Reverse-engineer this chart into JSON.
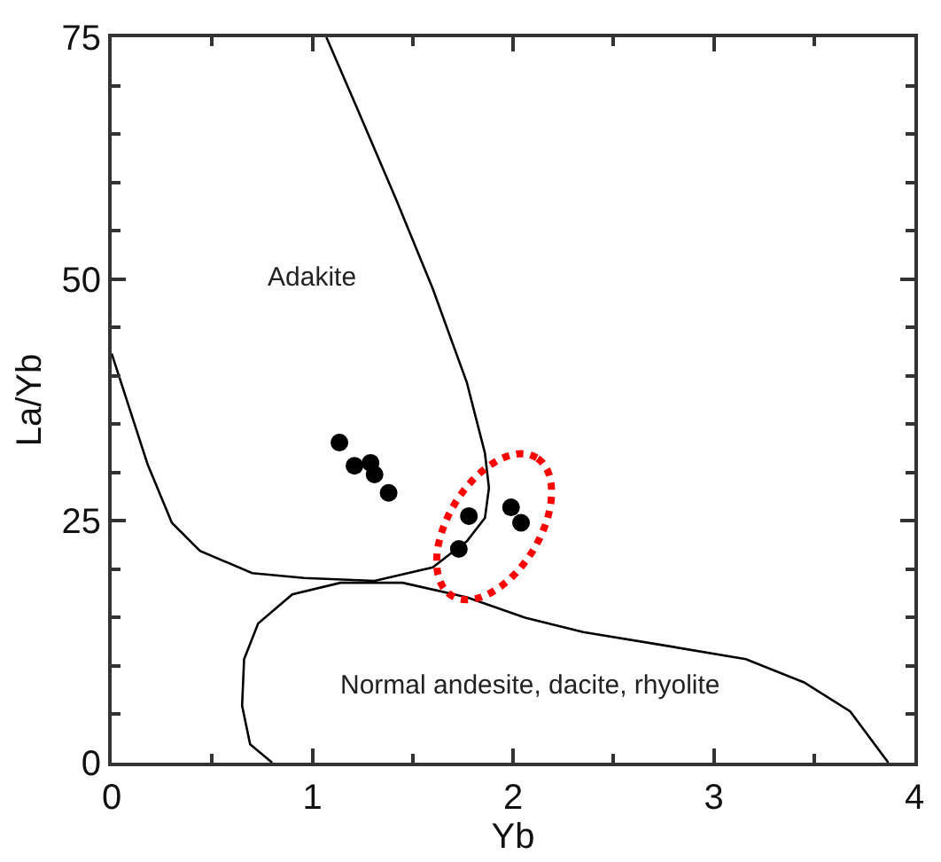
{
  "chart_data": {
    "type": "scatter",
    "xlabel": "Yb",
    "ylabel": "La/Yb",
    "xlim": [
      0,
      4
    ],
    "ylim": [
      0,
      75
    ],
    "xticks": [
      0,
      1,
      2,
      3,
      4
    ],
    "yticks": [
      0,
      25,
      50,
      75
    ],
    "annotations": [
      "Adakite",
      "Normal andesite, dacite, rhyolite"
    ],
    "series": [
      {
        "type": "line",
        "color": "#000000",
        "marker": "none",
        "line_style": "solid",
        "x": [
          1.07,
          1.22,
          1.42,
          1.6,
          1.77,
          1.86,
          1.88,
          1.86,
          1.77,
          1.6,
          1.31,
          0.96,
          0.7,
          0.44,
          0.3,
          0.18,
          0
        ],
        "values": [
          75,
          67.8,
          58.1,
          49.0,
          39.3,
          32.0,
          28.4,
          25.3,
          22.9,
          20.2,
          18.8,
          19.1,
          19.6,
          21.9,
          24.8,
          30.8,
          42.3
        ]
      },
      {
        "type": "line",
        "color": "#000000",
        "marker": "none",
        "line_style": "solid",
        "x": [
          0.8,
          0.69,
          0.65,
          0.66,
          0.73,
          0.9,
          1.14,
          1.45,
          1.77,
          2.06,
          2.35,
          2.79,
          3.16,
          3.45,
          3.68,
          3.87
        ],
        "values": [
          0,
          1.9,
          5.9,
          10.7,
          14.4,
          17.4,
          18.6,
          18.6,
          17.1,
          15.0,
          13.5,
          12.0,
          10.7,
          8.3,
          5.3,
          0
        ]
      },
      {
        "color": "#000000",
        "marker": "circle",
        "x": [
          1.135,
          1.21,
          1.29,
          1.31,
          1.38,
          1.78,
          1.73,
          1.99,
          2.04
        ],
        "values": [
          33.1,
          30.7,
          31.0,
          29.8,
          27.9,
          25.5,
          22.1,
          26.4,
          24.8
        ]
      }
    ]
  }
}
